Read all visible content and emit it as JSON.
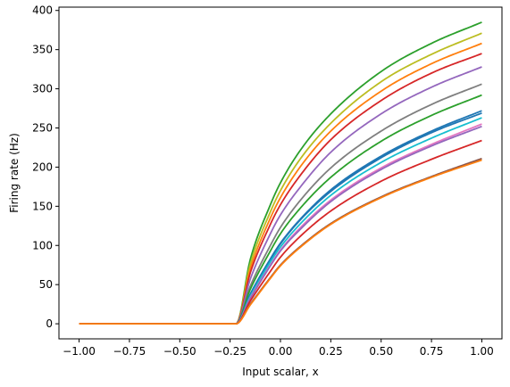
{
  "chart_data": {
    "type": "line",
    "title": "",
    "xlabel": "Input scalar, x",
    "ylabel": "Firing rate (Hz)",
    "xlim": [
      -1.1,
      1.1
    ],
    "ylim": [
      -19.25,
      404.25
    ],
    "xticks": [
      -1.0,
      -0.75,
      -0.5,
      -0.25,
      0.0,
      0.25,
      0.5,
      0.75,
      1.0
    ],
    "xtick_labels": [
      "−1.00",
      "−0.75",
      "−0.50",
      "−0.25",
      "0.00",
      "0.25",
      "0.50",
      "0.75",
      "1.00"
    ],
    "yticks": [
      0,
      50,
      100,
      150,
      200,
      250,
      300,
      350,
      400
    ],
    "ytick_labels": [
      "0",
      "50",
      "100",
      "150",
      "200",
      "250",
      "300",
      "350",
      "400"
    ],
    "grid": false,
    "legend": "none",
    "threshold_x": -0.22,
    "series": [
      {
        "color": "#2ca02c",
        "values": [
          [
            -1.0,
            0
          ],
          [
            -0.22,
            0
          ],
          [
            -0.15,
            82
          ],
          [
            -0.05,
            152
          ],
          [
            0.0,
            180
          ],
          [
            0.1,
            222
          ],
          [
            0.25,
            268
          ],
          [
            0.5,
            322
          ],
          [
            0.75,
            358
          ],
          [
            1.0,
            385
          ]
        ]
      },
      {
        "color": "#bcbd22",
        "values": [
          [
            -1.0,
            0
          ],
          [
            -0.22,
            0
          ],
          [
            -0.15,
            76
          ],
          [
            -0.05,
            143
          ],
          [
            0.0,
            170
          ],
          [
            0.1,
            211
          ],
          [
            0.25,
            256
          ],
          [
            0.5,
            309
          ],
          [
            0.75,
            344
          ],
          [
            1.0,
            371
          ]
        ]
      },
      {
        "color": "#ff7f0e",
        "values": [
          [
            -1.0,
            0
          ],
          [
            -0.22,
            0
          ],
          [
            -0.15,
            70
          ],
          [
            -0.05,
            135
          ],
          [
            0.0,
            161
          ],
          [
            0.1,
            201
          ],
          [
            0.25,
            246
          ],
          [
            0.5,
            297
          ],
          [
            0.75,
            332
          ],
          [
            1.0,
            358
          ]
        ]
      },
      {
        "color": "#d62728",
        "values": [
          [
            -1.0,
            0
          ],
          [
            -0.22,
            0
          ],
          [
            -0.15,
            65
          ],
          [
            -0.05,
            127
          ],
          [
            0.0,
            152
          ],
          [
            0.1,
            190
          ],
          [
            0.25,
            235
          ],
          [
            0.5,
            285
          ],
          [
            0.75,
            320
          ],
          [
            1.0,
            345
          ]
        ]
      },
      {
        "color": "#9467bd",
        "values": [
          [
            -1.0,
            0
          ],
          [
            -0.22,
            0
          ],
          [
            -0.15,
            57
          ],
          [
            -0.05,
            115
          ],
          [
            0.0,
            139
          ],
          [
            0.1,
            175
          ],
          [
            0.25,
            219
          ],
          [
            0.5,
            268
          ],
          [
            0.75,
            302
          ],
          [
            1.0,
            328
          ]
        ]
      },
      {
        "color": "#7f7f7f",
        "values": [
          [
            -1.0,
            0
          ],
          [
            -0.22,
            0
          ],
          [
            -0.15,
            48
          ],
          [
            -0.05,
            100
          ],
          [
            0.0,
            123
          ],
          [
            0.1,
            158
          ],
          [
            0.25,
            199
          ],
          [
            0.5,
            246
          ],
          [
            0.75,
            280
          ],
          [
            1.0,
            306
          ]
        ]
      },
      {
        "color": "#2ca02c",
        "values": [
          [
            -1.0,
            0
          ],
          [
            -0.22,
            0
          ],
          [
            -0.15,
            44
          ],
          [
            -0.05,
            93
          ],
          [
            0.0,
            115
          ],
          [
            0.1,
            148
          ],
          [
            0.25,
            187
          ],
          [
            0.5,
            233
          ],
          [
            0.75,
            266
          ],
          [
            1.0,
            292
          ]
        ]
      },
      {
        "color": "#1f77b4",
        "values": [
          [
            -1.0,
            0
          ],
          [
            -0.22,
            0
          ],
          [
            -0.15,
            38
          ],
          [
            -0.05,
            83
          ],
          [
            0.0,
            103
          ],
          [
            0.1,
            134
          ],
          [
            0.25,
            171
          ],
          [
            0.5,
            214
          ],
          [
            0.75,
            246
          ],
          [
            1.0,
            272
          ]
        ]
      },
      {
        "color": "#1f77b4",
        "values": [
          [
            -1.0,
            0
          ],
          [
            -0.22,
            0
          ],
          [
            -0.15,
            37
          ],
          [
            -0.05,
            82
          ],
          [
            0.0,
            102
          ],
          [
            0.1,
            133
          ],
          [
            0.25,
            169
          ],
          [
            0.5,
            212
          ],
          [
            0.75,
            244
          ],
          [
            1.0,
            269
          ]
        ]
      },
      {
        "color": "#17becf",
        "values": [
          [
            -1.0,
            0
          ],
          [
            -0.22,
            0
          ],
          [
            -0.15,
            35
          ],
          [
            -0.05,
            79
          ],
          [
            0.0,
            98
          ],
          [
            0.1,
            128
          ],
          [
            0.25,
            164
          ],
          [
            0.5,
            206
          ],
          [
            0.75,
            237
          ],
          [
            1.0,
            263
          ]
        ]
      },
      {
        "color": "#e377c2",
        "values": [
          [
            -1.0,
            0
          ],
          [
            -0.22,
            0
          ],
          [
            -0.15,
            33
          ],
          [
            -0.05,
            75
          ],
          [
            0.0,
            94
          ],
          [
            0.1,
            123
          ],
          [
            0.25,
            158
          ],
          [
            0.5,
            199
          ],
          [
            0.75,
            229
          ],
          [
            1.0,
            255
          ]
        ]
      },
      {
        "color": "#9467bd",
        "values": [
          [
            -1.0,
            0
          ],
          [
            -0.22,
            0
          ],
          [
            -0.15,
            32
          ],
          [
            -0.05,
            74
          ],
          [
            0.0,
            93
          ],
          [
            0.1,
            121
          ],
          [
            0.25,
            156
          ],
          [
            0.5,
            197
          ],
          [
            0.75,
            227
          ],
          [
            1.0,
            252
          ]
        ]
      },
      {
        "color": "#d62728",
        "values": [
          [
            -1.0,
            0
          ],
          [
            -0.22,
            0
          ],
          [
            -0.15,
            29
          ],
          [
            -0.05,
            67
          ],
          [
            0.0,
            85
          ],
          [
            0.1,
            112
          ],
          [
            0.25,
            144
          ],
          [
            0.5,
            182
          ],
          [
            0.75,
            210
          ],
          [
            1.0,
            234
          ]
        ]
      },
      {
        "color": "#8c564b",
        "values": [
          [
            -1.0,
            0
          ],
          [
            -0.22,
            0
          ],
          [
            -0.15,
            25
          ],
          [
            -0.05,
            59
          ],
          [
            0.0,
            75
          ],
          [
            0.1,
            99
          ],
          [
            0.25,
            128
          ],
          [
            0.5,
            162
          ],
          [
            0.75,
            188
          ],
          [
            1.0,
            211
          ]
        ]
      },
      {
        "color": "#ff7f0e",
        "values": [
          [
            -1.0,
            0
          ],
          [
            -0.22,
            0
          ],
          [
            -0.15,
            24
          ],
          [
            -0.05,
            58
          ],
          [
            0.0,
            74
          ],
          [
            0.1,
            98
          ],
          [
            0.25,
            127
          ],
          [
            0.5,
            161
          ],
          [
            0.75,
            187
          ],
          [
            1.0,
            209
          ]
        ]
      }
    ]
  }
}
